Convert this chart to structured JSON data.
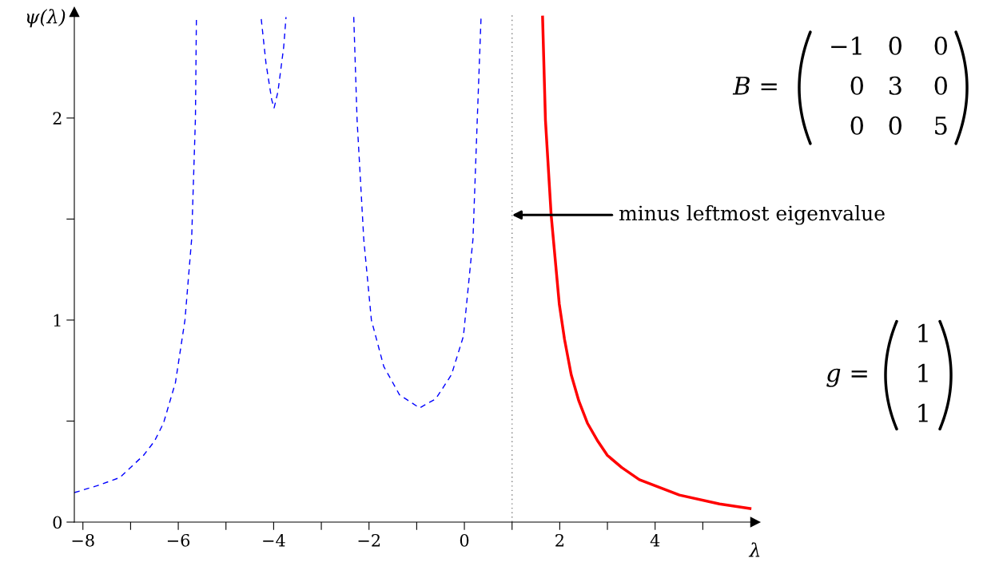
{
  "chart_data": {
    "type": "line",
    "xlabel": "λ",
    "ylabel": "ψ(λ)",
    "xlim": [
      -8.18,
      6.1
    ],
    "ylim": [
      0,
      2.525
    ],
    "xticks": [
      -8,
      {
        "value": -7,
        "label": null
      },
      -6,
      {
        "value": -5,
        "label": null
      },
      -4,
      {
        "value": -3,
        "label": null
      },
      -2,
      {
        "value": -1,
        "label": null
      },
      0,
      {
        "value": 1,
        "label": null
      },
      2,
      {
        "value": 3,
        "label": null
      },
      4,
      {
        "value": 5,
        "label": null
      }
    ],
    "yticks": [
      0,
      {
        "value": 0.5,
        "label": null
      },
      1,
      {
        "value": 1.5,
        "label": null
      },
      2
    ],
    "grid": false,
    "legend": false,
    "marker": "none",
    "series": [
      {
        "color": "#0000ff",
        "line_style": "dashed",
        "x": [
          -8.18,
          -7.7,
          -7.23,
          -6.73,
          -6.5,
          -6.31,
          -6.06,
          -5.86,
          -5.72,
          -5.64,
          -5.62,
          -5.0,
          -4.26,
          -4.16,
          -4.04,
          -3.99,
          -3.91,
          -3.79,
          -3.74,
          -3.0,
          -2.32,
          -2.25,
          -2.11,
          -1.95,
          -1.69,
          -1.36,
          -0.94,
          -0.6,
          -0.27,
          -0.02,
          0.18,
          0.27,
          0.35
        ],
        "values": [
          0.146,
          0.18,
          0.22,
          0.33,
          0.4,
          0.49,
          0.69,
          1.0,
          1.4,
          2.0,
          2.49,
          null,
          2.49,
          2.27,
          2.09,
          2.05,
          2.13,
          2.35,
          2.5,
          null,
          2.5,
          1.99,
          1.4,
          1.0,
          0.77,
          0.63,
          0.565,
          0.61,
          0.73,
          0.92,
          1.4,
          1.99,
          2.5
        ]
      },
      {
        "color": "#ff0000",
        "line_style": "solid",
        "x": [
          1.64,
          1.7,
          1.82,
          1.99,
          2.1,
          2.24,
          2.4,
          2.58,
          2.8,
          3.0,
          3.3,
          3.67,
          4.51,
          5.35,
          5.99
        ],
        "values": [
          2.5,
          1.99,
          1.52,
          1.08,
          0.905,
          0.73,
          0.6,
          0.49,
          0.4,
          0.33,
          0.27,
          0.21,
          0.134,
          0.09,
          0.067
        ]
      }
    ],
    "ref_lines": [
      {
        "axis": "x",
        "value": 1,
        "color": "#808080",
        "line_style": "dotted"
      }
    ],
    "annotations": [
      {
        "text": "minus leftmost eigenvalue",
        "x": 1,
        "y": 1.52
      },
      "B =",
      "−1 0 0",
      "0 3 0",
      "0 0 5",
      "g =",
      "1",
      "1",
      "1"
    ]
  }
}
